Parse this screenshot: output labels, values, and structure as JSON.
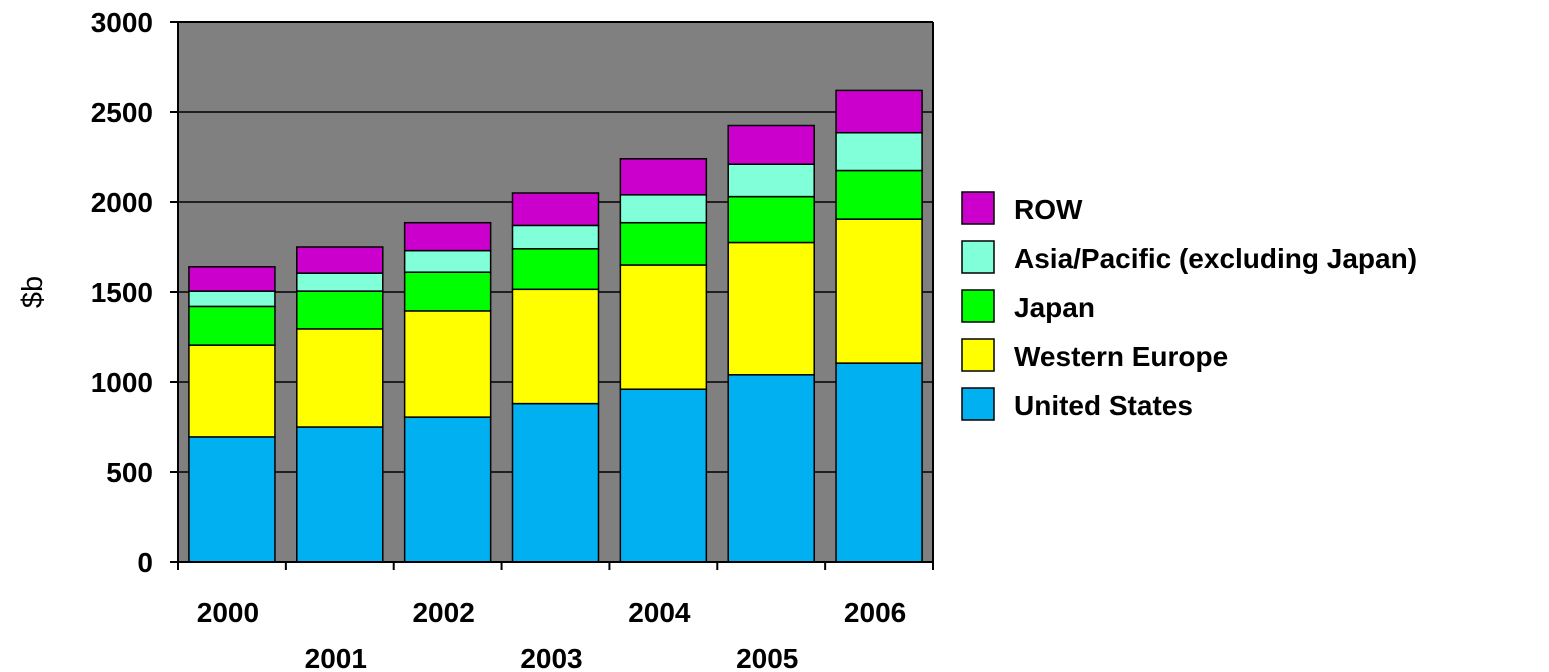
{
  "chart_data": {
    "type": "bar",
    "stacked": true,
    "ylabel": "$b",
    "ylim": [
      0,
      3000
    ],
    "yticks": [
      0,
      500,
      1000,
      1500,
      2000,
      2500,
      3000
    ],
    "grid": "horizontal",
    "plot_background": "#808080",
    "legend_position": "right",
    "categories": [
      "2000",
      "2001",
      "2002",
      "2003",
      "2004",
      "2005",
      "2006"
    ],
    "series": [
      {
        "name": "United States",
        "color": "#00B0F0",
        "values": [
          695,
          750,
          805,
          880,
          960,
          1040,
          1105
        ]
      },
      {
        "name": "Western Europe",
        "color": "#FFFF00",
        "values": [
          510,
          545,
          590,
          635,
          690,
          735,
          800
        ]
      },
      {
        "name": "Japan",
        "color": "#00FF00",
        "values": [
          215,
          210,
          215,
          225,
          235,
          255,
          270
        ]
      },
      {
        "name": "Asia/Pacific (excluding Japan)",
        "color": "#80FFD8",
        "values": [
          85,
          100,
          120,
          130,
          155,
          180,
          210
        ]
      },
      {
        "name": "ROW",
        "color": "#CC00CC",
        "values": [
          135,
          145,
          155,
          180,
          200,
          215,
          235
        ]
      }
    ]
  }
}
